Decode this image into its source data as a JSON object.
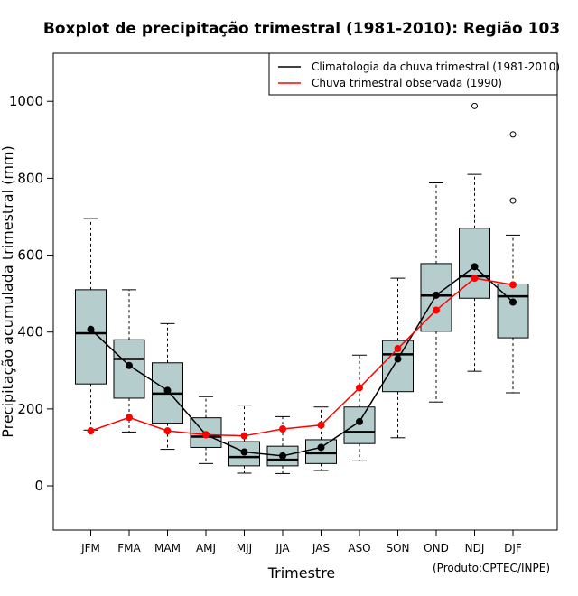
{
  "chart_data": {
    "type": "boxplot",
    "title": "Boxplot de precipitação trimestral (1981-2010): Região 103",
    "xlabel": "Trimestre",
    "ylabel": "Precipitação acumulada trimestral (mm)",
    "ylim": [
      -115,
      1125
    ],
    "yticks": [
      0,
      200,
      400,
      600,
      800,
      1000
    ],
    "categories": [
      "JFM",
      "FMA",
      "MAM",
      "AMJ",
      "MJJ",
      "JJA",
      "JAS",
      "ASO",
      "SON",
      "OND",
      "NDJ",
      "DJF"
    ],
    "boxes": [
      {
        "min": 145,
        "q1": 265,
        "median": 397,
        "q3": 510,
        "max": 695,
        "outliers": []
      },
      {
        "min": 140,
        "q1": 228,
        "median": 330,
        "q3": 380,
        "max": 510,
        "outliers": []
      },
      {
        "min": 95,
        "q1": 163,
        "median": 240,
        "q3": 320,
        "max": 422,
        "outliers": []
      },
      {
        "min": 58,
        "q1": 100,
        "median": 128,
        "q3": 177,
        "max": 232,
        "outliers": []
      },
      {
        "min": 33,
        "q1": 52,
        "median": 75,
        "q3": 115,
        "max": 210,
        "outliers": []
      },
      {
        "min": 32,
        "q1": 52,
        "median": 68,
        "q3": 103,
        "max": 180,
        "outliers": []
      },
      {
        "min": 40,
        "q1": 58,
        "median": 85,
        "q3": 120,
        "max": 205,
        "outliers": []
      },
      {
        "min": 65,
        "q1": 110,
        "median": 140,
        "q3": 205,
        "max": 340,
        "outliers": []
      },
      {
        "min": 125,
        "q1": 245,
        "median": 342,
        "q3": 378,
        "max": 540,
        "outliers": []
      },
      {
        "min": 218,
        "q1": 402,
        "median": 495,
        "q3": 578,
        "max": 788,
        "outliers": []
      },
      {
        "min": 298,
        "q1": 488,
        "median": 545,
        "q3": 670,
        "max": 810,
        "outliers": [
          988
        ]
      },
      {
        "min": 242,
        "q1": 385,
        "median": 493,
        "q3": 525,
        "max": 652,
        "outliers": [
          742,
          914
        ]
      }
    ],
    "series": [
      {
        "name": "Climatologia da chuva trimestral (1981-2010)",
        "color": "#000000",
        "values": [
          407,
          313,
          248,
          133,
          88,
          78,
          100,
          167,
          330,
          496,
          570,
          478
        ]
      },
      {
        "name": "Chuva trimestral observada (1990)",
        "color": "#ff0000",
        "values": [
          143,
          178,
          143,
          133,
          130,
          148,
          158,
          255,
          357,
          457,
          540,
          523
        ]
      }
    ],
    "box_fill": "#b5cdcd",
    "legend_position": "top-right",
    "credit": "(Produto:CPTEC/INPE)"
  }
}
